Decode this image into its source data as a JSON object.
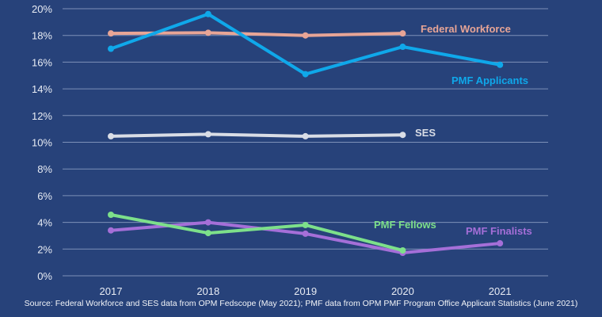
{
  "chart_data": {
    "type": "line",
    "categories": [
      "2017",
      "2018",
      "2019",
      "2020",
      "2021"
    ],
    "ylim": [
      0,
      20
    ],
    "yticks": [
      "0%",
      "2%",
      "4%",
      "6%",
      "8%",
      "10%",
      "12%",
      "14%",
      "16%",
      "18%",
      "20%"
    ],
    "grid": true,
    "legend": "inline labels",
    "series": [
      {
        "name": "Federal Workforce",
        "color": "#e8a596",
        "values": [
          18.15,
          18.2,
          18.0,
          18.15,
          null
        ]
      },
      {
        "name": "PMF Applicants",
        "color": "#0fa8ea",
        "values": [
          17.0,
          19.6,
          15.1,
          17.15,
          15.8
        ]
      },
      {
        "name": "SES",
        "color": "#d9dde6",
        "values": [
          10.45,
          10.6,
          10.45,
          10.55,
          null
        ]
      },
      {
        "name": "PMF Finalists",
        "color": "#a56fd8",
        "values": [
          3.4,
          4.0,
          3.15,
          1.72,
          2.43
        ]
      },
      {
        "name": "PMF Fellows",
        "color": "#7de08a",
        "values": [
          4.57,
          3.2,
          3.8,
          1.9,
          null
        ]
      }
    ],
    "source": "Source: Federal Workforce and SES data from OPM Fedscope (May 2021); PMF data from OPM PMF Program Office Applicant Statistics (June 2021)"
  }
}
